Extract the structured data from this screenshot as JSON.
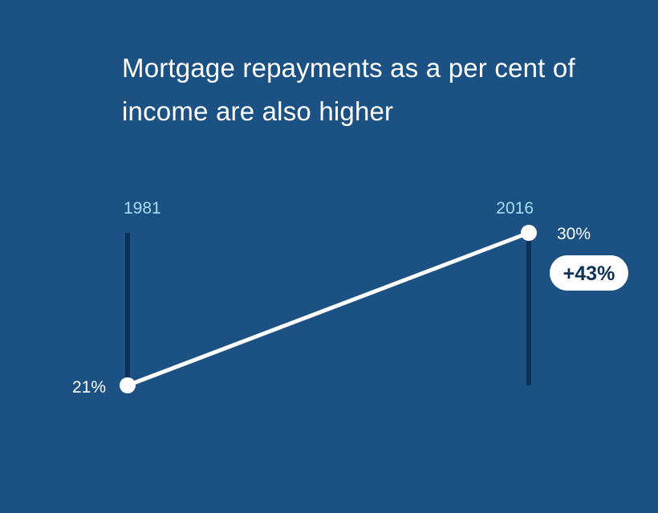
{
  "title": "Mortgage repayments as a per cent of income are also higher",
  "colors": {
    "background": "#1b5183",
    "rail": "#0c3158",
    "line": "#ffffff",
    "year_label": "#a9dcf6",
    "value_label": "#ffffff",
    "badge_bg": "#ffffff",
    "badge_text": "#0c3158"
  },
  "chart_data": {
    "type": "line",
    "title": "Mortgage repayments as a per cent of income are also higher",
    "x": [
      "1981",
      "2016"
    ],
    "series": [
      {
        "values": [
          21,
          30
        ],
        "value_labels": [
          "21%",
          "30%"
        ]
      }
    ],
    "ylim": [
      21,
      30
    ],
    "change_label": "+43%",
    "grid": false,
    "legend": "none"
  }
}
